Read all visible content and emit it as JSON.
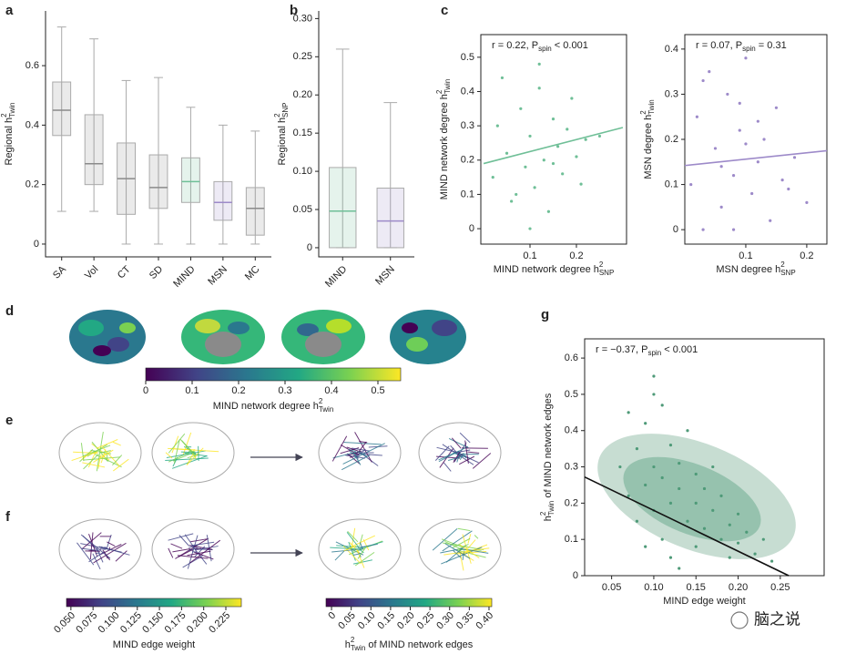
{
  "panel_labels": [
    "a",
    "b",
    "c",
    "d",
    "e",
    "f",
    "g"
  ],
  "watermark": "脑之说",
  "chart_data": [
    {
      "type": "box",
      "ylabel": {
        "main": "Regional h",
        "sup": "2",
        "sub": "Twin"
      },
      "categories": [
        "SA",
        "Vol",
        "CT",
        "SD",
        "MIND",
        "MSN",
        "MC"
      ],
      "colors": [
        "#8a8a8a",
        "#8a8a8a",
        "#8a8a8a",
        "#8a8a8a",
        "#6fbf97",
        "#9d8ac9",
        "#8a8a8a"
      ],
      "boxes": [
        {
          "low": 0.11,
          "q1": 0.365,
          "median": 0.45,
          "q3": 0.545,
          "high": 0.73
        },
        {
          "low": 0.11,
          "q1": 0.2,
          "median": 0.27,
          "q3": 0.435,
          "high": 0.69
        },
        {
          "low": 0,
          "q1": 0.1,
          "median": 0.22,
          "q3": 0.34,
          "high": 0.55
        },
        {
          "low": 0,
          "q1": 0.12,
          "median": 0.19,
          "q3": 0.3,
          "high": 0.56
        },
        {
          "low": 0,
          "q1": 0.14,
          "median": 0.21,
          "q3": 0.29,
          "high": 0.46
        },
        {
          "low": 0,
          "q1": 0.08,
          "median": 0.14,
          "q3": 0.21,
          "high": 0.4
        },
        {
          "low": 0,
          "q1": 0.03,
          "median": 0.12,
          "q3": 0.19,
          "high": 0.38
        }
      ],
      "ylim": [
        -0.043,
        0.784
      ],
      "yticks": [
        0,
        0.2,
        0.4,
        0.6
      ]
    },
    {
      "type": "box",
      "ylabel": {
        "main": "Regional h",
        "sup": "2",
        "sub": "SNP"
      },
      "categories": [
        "MIND",
        "MSN"
      ],
      "colors": [
        "#6fbf97",
        "#9d8ac9"
      ],
      "boxes": [
        {
          "low": 0,
          "q1": 0,
          "median": 0.048,
          "q3": 0.105,
          "high": 0.26
        },
        {
          "low": 0,
          "q1": 0,
          "median": 0.035,
          "q3": 0.078,
          "high": 0.19
        }
      ],
      "ylim": [
        -0.012,
        0.31
      ],
      "yticks": [
        0,
        0.05,
        {
          "value": 0.1,
          "label": "0.10"
        },
        0.15,
        {
          "value": 0.2,
          "label": "0.20"
        },
        0.25,
        {
          "value": 0.3,
          "label": "0.30"
        }
      ]
    },
    {
      "type": "scatter",
      "annotation": {
        "main": "r = 0.22, P",
        "sub": "spin",
        "tail": " < 0.001"
      },
      "xlabel": {
        "main": "MIND network degree h",
        "sup": "2",
        "sub": "SNP"
      },
      "ylabel": {
        "main": "MIND network degree h",
        "sup": "2",
        "sub": "Twin"
      },
      "color": "#6fbf97",
      "x": [
        0.02,
        0.03,
        0.05,
        0.06,
        0.08,
        0.09,
        0.1,
        0.11,
        0.12,
        0.13,
        0.14,
        0.15,
        0.16,
        0.17,
        0.18,
        0.19,
        0.2,
        0.21,
        0.22,
        0.04,
        0.07,
        0.1,
        0.12,
        0.15,
        0.25
      ],
      "y": [
        0.15,
        0.3,
        0.22,
        0.08,
        0.35,
        0.18,
        0.27,
        0.12,
        0.41,
        0.2,
        0.05,
        0.32,
        0.24,
        0.16,
        0.29,
        0.38,
        0.21,
        0.13,
        0.26,
        0.44,
        0.1,
        0,
        0.48,
        0.19,
        0.27
      ],
      "fit_x": [
        0,
        0.3
      ],
      "fit_y": [
        0.19,
        0.295
      ],
      "xlim": [
        -0.006,
        0.308
      ],
      "ylim": [
        -0.045,
        0.566
      ],
      "xticks": [
        0.1,
        0.2
      ],
      "yticks": [
        0,
        0.1,
        0.2,
        0.3,
        0.4,
        0.5
      ]
    },
    {
      "type": "scatter",
      "annotation": {
        "main": "r = 0.07, P",
        "sub": "spin",
        "tail": " = 0.31"
      },
      "xlabel": {
        "main": "MSN degree h",
        "sup": "2",
        "sub": "SNP"
      },
      "ylabel": {
        "main": "MSN degree h",
        "sup": "2",
        "sub": "Twin"
      },
      "color": "#9d8ac9",
      "x": [
        0.01,
        0.02,
        0.03,
        0.05,
        0.06,
        0.07,
        0.08,
        0.09,
        0.1,
        0.11,
        0.12,
        0.13,
        0.14,
        0.15,
        0.16,
        0.18,
        0.2,
        0.04,
        0.08,
        0.12,
        0.06,
        0.1,
        0.03,
        0.17,
        0.09
      ],
      "y": [
        0.1,
        0.25,
        0,
        0.18,
        0.05,
        0.3,
        0.12,
        0.22,
        0.38,
        0.08,
        0.15,
        0.2,
        0.02,
        0.27,
        0.11,
        0.16,
        0.06,
        0.35,
        0,
        0.24,
        0.14,
        0.19,
        0.33,
        0.09,
        0.28
      ],
      "fit_x": [
        0,
        0.233
      ],
      "fit_y": [
        0.142,
        0.175
      ],
      "xlim": [
        0,
        0.233
      ],
      "ylim": [
        -0.032,
        0.432
      ],
      "xticks": [
        0.1,
        0.2
      ],
      "yticks": [
        0,
        0.1,
        0.2,
        0.3,
        0.4
      ]
    },
    {
      "type": "colorbar",
      "colormap": "viridis",
      "rotated_ticks": false,
      "label": {
        "main": "MIND network degree h",
        "sup": "2",
        "sub": "Twin"
      },
      "lim": [
        0,
        0.549
      ],
      "ticks": [
        0,
        0.1,
        0.2,
        0.3,
        0.4,
        0.5
      ]
    },
    {
      "type": "colorbar",
      "colormap": "viridis",
      "rotated_ticks": true,
      "label": {
        "main": "MIND edge weight"
      },
      "lim": [
        0.045,
        0.2425
      ],
      "ticks": [
        {
          "value": 0.05,
          "label": "0.050"
        },
        0.075,
        {
          "value": 0.1,
          "label": "0.100"
        },
        0.125,
        {
          "value": 0.15,
          "label": "0.150"
        },
        0.175,
        {
          "value": 0.2,
          "label": "0.200"
        },
        0.225
      ]
    },
    {
      "type": "colorbar",
      "colormap": "viridis",
      "rotated_ticks": true,
      "label": {
        "main": "h",
        "sup": "2",
        "sub": "Twin",
        "tail": " of MIND network edges"
      },
      "lim": [
        -0.014,
        0.407
      ],
      "ticks": [
        0,
        0.05,
        {
          "value": 0.1,
          "label": "0.10"
        },
        0.15,
        {
          "value": 0.2,
          "label": "0.20"
        },
        0.25,
        {
          "value": 0.3,
          "label": "0.30"
        },
        0.35,
        {
          "value": 0.4,
          "label": "0.40"
        }
      ]
    },
    {
      "type": "scatter",
      "annotation": {
        "main": "r = −0.37, P",
        "sub": "spin",
        "tail": " < 0.001"
      },
      "xlabel": {
        "main": "MIND edge weight"
      },
      "ylabel": {
        "main": "h",
        "sup": "2",
        "sub": "Twin",
        "tail": " of MIND network edges"
      },
      "color": "#4e9a78",
      "x": [
        0.06,
        0.07,
        0.08,
        0.08,
        0.09,
        0.09,
        0.1,
        0.1,
        0.1,
        0.11,
        0.11,
        0.12,
        0.12,
        0.12,
        0.13,
        0.13,
        0.14,
        0.14,
        0.15,
        0.15,
        0.15,
        0.16,
        0.16,
        0.17,
        0.17,
        0.18,
        0.18,
        0.19,
        0.19,
        0.2,
        0.2,
        0.21,
        0.22,
        0.23,
        0.24,
        0.07,
        0.09,
        0.11,
        0.13,
        0.1
      ],
      "y": [
        0.3,
        0.22,
        0.35,
        0.15,
        0.25,
        0.42,
        0.18,
        0.3,
        0.5,
        0.1,
        0.27,
        0.2,
        0.36,
        0.05,
        0.24,
        0.31,
        0.15,
        0.4,
        0.2,
        0.28,
        0.08,
        0.13,
        0.24,
        0.18,
        0.3,
        0.1,
        0.22,
        0.14,
        0.05,
        0.17,
        0.09,
        0.12,
        0.06,
        0.1,
        0.04,
        0.45,
        0.08,
        0.47,
        0.02,
        0.55
      ],
      "fit_x": [
        0.018,
        0.26
      ],
      "fit_y": [
        0.272,
        0
      ],
      "xlim": [
        0.018,
        0.302
      ],
      "ylim": [
        0,
        0.653
      ],
      "xticks": [
        0.05,
        {
          "value": 0.1,
          "label": "0.10"
        },
        0.15,
        {
          "value": 0.2,
          "label": "0.20"
        },
        0.25
      ],
      "yticks": [
        0,
        0.1,
        0.2,
        0.3,
        0.4,
        0.5,
        0.6
      ]
    }
  ]
}
